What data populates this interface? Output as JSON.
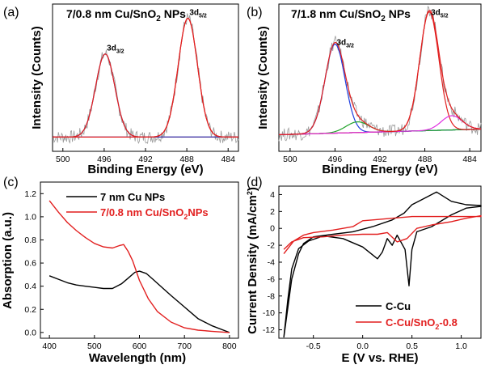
{
  "chart_data": [
    {
      "panel": "(a)",
      "type": "line",
      "title_main": "7/0.8 nm Cu/SnO",
      "title_sub": "2",
      "title_tail": " NPs",
      "xlabel": "Binding Energy (eV)",
      "ylabel": "Intensity (Counts)",
      "xlim": [
        501,
        483
      ],
      "x_ticks": [
        500,
        496,
        492,
        488,
        484
      ],
      "y_ticks_labeled": false,
      "peaks": [
        {
          "name_main": "3d",
          "name_sub": "3/2",
          "center": 495.9,
          "fwhm": 2.2,
          "height": 0.7
        },
        {
          "name_main": "3d",
          "name_sub": "5/2",
          "center": 487.9,
          "fwhm": 2.2,
          "height": 1.0
        }
      ],
      "colors": {
        "raw": "#9a9a9a",
        "fit": "#e21f1f",
        "component_1": "#4b3aa0",
        "baseline": "#1f3fe0"
      }
    },
    {
      "panel": "(b)",
      "type": "line",
      "title_main": "7/1.8 nm Cu/SnO",
      "title_sub": "2",
      "title_tail": " NPs",
      "xlabel": "Binding Energy (eV)",
      "ylabel": "Intensity (Counts)",
      "xlim": [
        501,
        483
      ],
      "x_ticks": [
        500,
        496,
        492,
        488,
        484
      ],
      "y_ticks_labeled": false,
      "peaks": [
        {
          "name_main": "3d",
          "name_sub": "3/2",
          "center": 496.0,
          "fwhm": 2.1,
          "height": 0.75
        },
        {
          "name_main": "",
          "name_sub": "",
          "center": 494.0,
          "fwhm": 2.4,
          "height": 0.09
        },
        {
          "name_main": "3d",
          "name_sub": "5/2",
          "center": 487.6,
          "fwhm": 2.0,
          "height": 1.0
        },
        {
          "name_main": "",
          "name_sub": "",
          "center": 485.6,
          "fwhm": 2.2,
          "height": 0.12
        }
      ],
      "colors": {
        "raw": "#9a9a9a",
        "fit": "#e21f1f",
        "component_main": "#1f3fe0",
        "component_shoulder_1": "#21a32b",
        "component_shoulder_2": "#e030e0",
        "baseline": "#21a32b"
      }
    },
    {
      "panel": "(c)",
      "type": "line",
      "xlabel": "Wavelength (nm)",
      "ylabel": "Absorption (a.u.)",
      "xlim": [
        380,
        820
      ],
      "ylim": [
        -0.05,
        1.3
      ],
      "x_ticks": [
        400,
        500,
        600,
        700,
        800
      ],
      "y_ticks": [
        0.0,
        0.2,
        0.4,
        0.6,
        0.8,
        1.0,
        1.2
      ],
      "legend_position": "top-right",
      "series": [
        {
          "name": "7 nm Cu NPs",
          "name_main": "7 nm Cu NPs",
          "name_sub": "",
          "name_tail": "",
          "color": "#000000",
          "x": [
            400,
            420,
            440,
            460,
            480,
            500,
            520,
            540,
            560,
            575,
            590,
            600,
            615,
            630,
            650,
            670,
            700,
            730,
            760,
            800
          ],
          "y": [
            0.49,
            0.46,
            0.43,
            0.41,
            0.4,
            0.39,
            0.38,
            0.38,
            0.42,
            0.47,
            0.52,
            0.53,
            0.51,
            0.46,
            0.39,
            0.32,
            0.22,
            0.12,
            0.06,
            0.0
          ]
        },
        {
          "name": "7/0.8 nm Cu/SnO2 NPs",
          "name_main": "7/0.8 nm Cu/SnO",
          "name_sub": "2",
          "name_tail": "NPs",
          "color": "#e21f1f",
          "x": [
            400,
            420,
            440,
            460,
            480,
            500,
            520,
            540,
            555,
            565,
            575,
            585,
            600,
            620,
            640,
            670,
            700,
            730,
            760,
            800
          ],
          "y": [
            1.14,
            1.04,
            0.95,
            0.88,
            0.82,
            0.77,
            0.74,
            0.73,
            0.75,
            0.76,
            0.7,
            0.62,
            0.45,
            0.29,
            0.18,
            0.09,
            0.04,
            0.02,
            0.01,
            0.0
          ]
        }
      ]
    },
    {
      "panel": "(d)",
      "type": "line",
      "xlabel": "E (V vs. RHE)",
      "ylabel_main": "Current Density (mA/cm",
      "ylabel_sup": "2",
      "ylabel_tail": ")",
      "xlim": [
        -0.85,
        1.2
      ],
      "ylim": [
        -13,
        5
      ],
      "x_ticks": [
        -0.5,
        0.0,
        0.5,
        1.0
      ],
      "y_ticks": [
        4,
        2,
        0,
        -2,
        -4,
        -6,
        -8,
        -10,
        -12
      ],
      "legend_position": "bottom-right",
      "series": [
        {
          "name": "C-Cu",
          "name_main": "C-Cu",
          "name_sub": "",
          "name_tail": "",
          "color": "#000000",
          "x": [
            -0.8,
            -0.72,
            -0.65,
            -0.6,
            -0.5,
            -0.3,
            -0.1,
            0.1,
            0.3,
            0.42,
            0.5,
            0.6,
            0.75,
            0.9,
            1.05,
            1.2,
            1.2,
            1.05,
            0.9,
            0.7,
            0.55,
            0.5,
            0.47,
            0.43,
            0.35,
            0.3,
            0.25,
            0.2,
            0.15,
            0.0,
            -0.2,
            -0.4,
            -0.55,
            -0.65,
            -0.72,
            -0.76,
            -0.8
          ],
          "y": [
            -12.9,
            -6.0,
            -3.0,
            -1.8,
            -1.0,
            -0.7,
            -0.4,
            0.2,
            1.0,
            1.8,
            2.8,
            3.4,
            4.3,
            3.2,
            2.8,
            2.7,
            2.6,
            2.4,
            1.6,
            0.2,
            -0.4,
            -2.5,
            -6.8,
            -2.5,
            -0.8,
            -2.0,
            -1.2,
            -2.8,
            -3.6,
            -2.2,
            -1.2,
            -0.9,
            -1.5,
            -2.4,
            -4.8,
            -8.5,
            -12.9
          ]
        },
        {
          "name": "C-Cu/SnO2-0.8",
          "name_main": "C-Cu/SnO",
          "name_sub": "2",
          "name_tail": "-0.8",
          "color": "#e21f1f",
          "x": [
            -0.8,
            -0.7,
            -0.6,
            -0.5,
            -0.3,
            -0.1,
            0.0,
            0.1,
            0.3,
            0.5,
            0.7,
            0.9,
            1.05,
            1.2,
            1.2,
            1.05,
            0.9,
            0.7,
            0.55,
            0.45,
            0.35,
            0.25,
            0.15,
            0.0,
            -0.2,
            -0.4,
            -0.6,
            -0.72,
            -0.8
          ],
          "y": [
            -3.0,
            -1.5,
            -0.8,
            -0.5,
            -0.2,
            0.2,
            0.9,
            1.0,
            1.2,
            1.4,
            1.4,
            1.4,
            1.4,
            1.4,
            1.5,
            1.2,
            0.8,
            0.4,
            0.0,
            -1.2,
            -1.6,
            -0.5,
            -0.7,
            -0.7,
            -0.8,
            -1.0,
            -1.1,
            -1.6,
            -2.5
          ]
        }
      ]
    }
  ]
}
